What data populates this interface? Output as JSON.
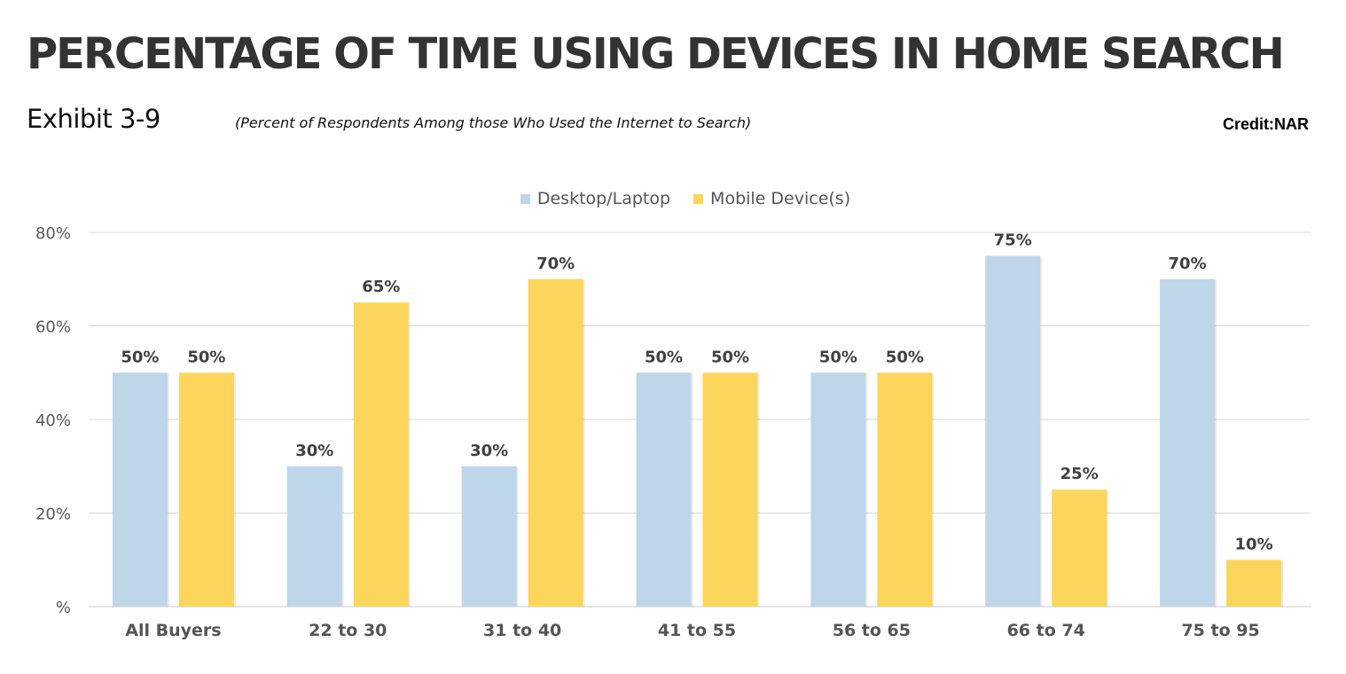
{
  "header": {
    "title": "PERCENTAGE OF TIME USING DEVICES IN HOME SEARCH",
    "exhibit": "Exhibit 3-9",
    "subtitle": "(Percent of Respondents Among those Who Used the Internet to Search)",
    "credit": "Credit:NAR"
  },
  "colors": {
    "desktop": "#bfd5e8",
    "mobile": "#fbd65a",
    "grid": "#d9d9d9",
    "axis_text": "#595959",
    "label_text": "#404040"
  },
  "chart_data": {
    "type": "bar",
    "categories": [
      "All Buyers",
      "22 to 30",
      "31 to 40",
      "41 to 55",
      "56 to 65",
      "66 to 74",
      "75 to 95"
    ],
    "series": [
      {
        "name": "Desktop/Laptop",
        "values": [
          50,
          30,
          30,
          50,
          50,
          75,
          70
        ]
      },
      {
        "name": "Mobile Device(s)",
        "values": [
          50,
          65,
          70,
          50,
          50,
          25,
          10
        ]
      }
    ],
    "ylim": [
      0,
      80
    ],
    "yticks": [
      0,
      20,
      40,
      60,
      80
    ],
    "ytick_labels": [
      "%",
      "20%",
      "40%",
      "60%",
      "80%"
    ],
    "value_suffix": "%",
    "legend_position": "top",
    "grid": true
  }
}
